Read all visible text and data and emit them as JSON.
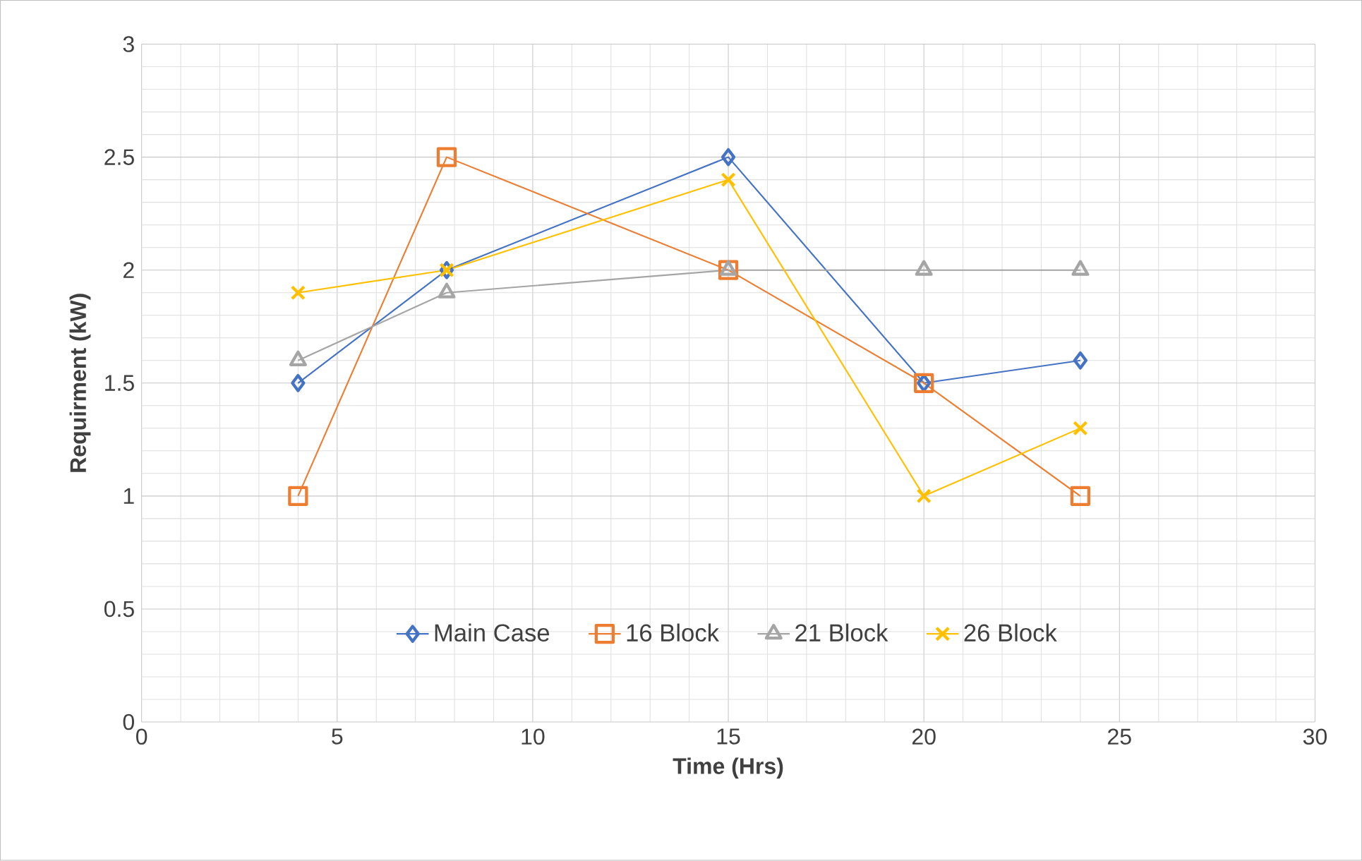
{
  "chart_data": {
    "type": "line",
    "xlabel": "Time (Hrs)",
    "ylabel": "Requirment (kW)",
    "xlim": [
      0,
      30
    ],
    "xticks": [
      0,
      5,
      10,
      15,
      20,
      25,
      30
    ],
    "ylim": [
      0,
      3
    ],
    "yticks": [
      0,
      0.5,
      1,
      1.5,
      2,
      2.5,
      3
    ],
    "x": [
      4,
      7.8,
      15,
      20,
      24
    ],
    "grid": true,
    "legend": "bottom",
    "line_style": "solid",
    "series": [
      {
        "name": "Main Case",
        "color": "#4472c4",
        "marker": "diamond",
        "values": [
          1.5,
          2.0,
          2.5,
          1.5,
          1.6
        ]
      },
      {
        "name": "16 Block",
        "color": "#ed7d31",
        "marker": "square",
        "values": [
          1.0,
          2.5,
          2.0,
          1.5,
          1.0
        ]
      },
      {
        "name": "21 Block",
        "color": "#a5a5a5",
        "marker": "triangle",
        "values": [
          1.6,
          1.9,
          2.0,
          2.0,
          2.0
        ]
      },
      {
        "name": "26 Block",
        "color": "#ffc000",
        "marker": "cross",
        "values": [
          1.9,
          2.0,
          2.4,
          1.0,
          1.3
        ]
      }
    ]
  }
}
